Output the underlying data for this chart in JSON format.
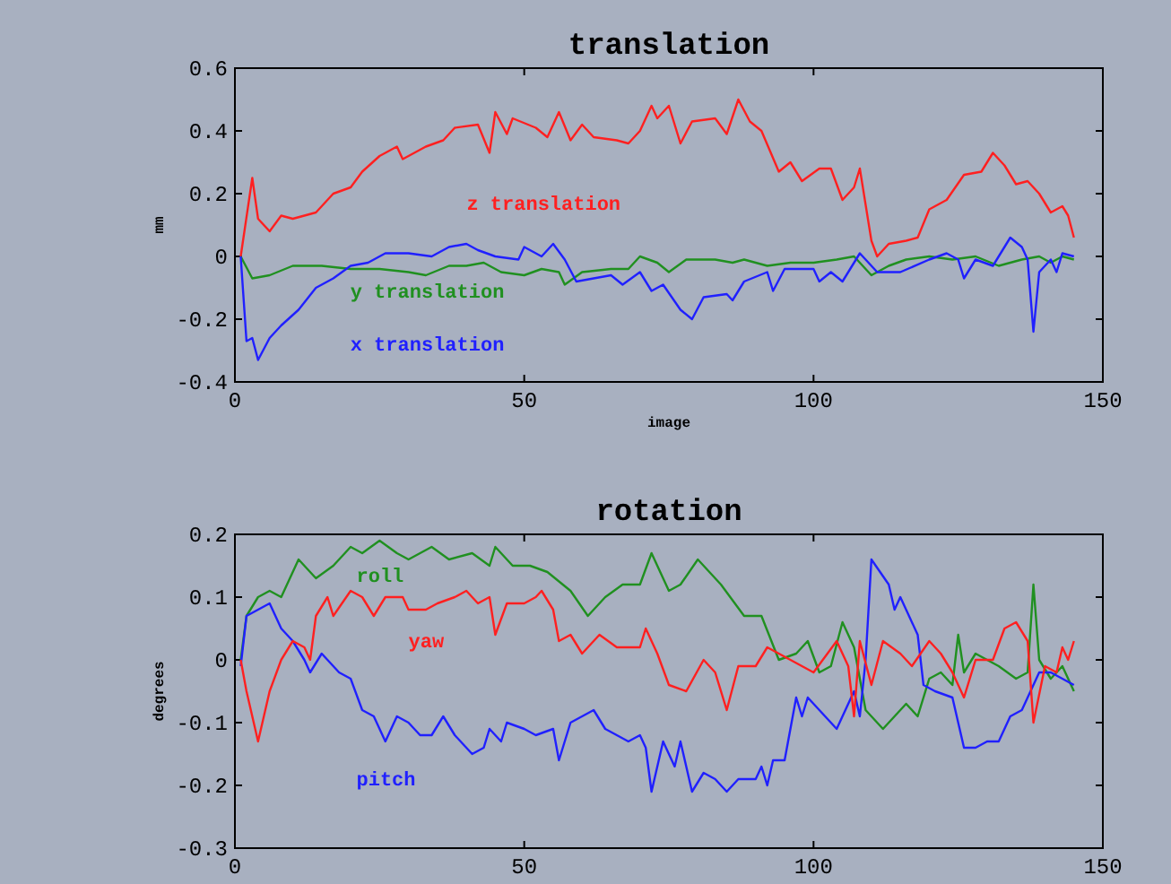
{
  "chart_data": [
    {
      "type": "line",
      "title": "translation",
      "xlabel": "image",
      "ylabel": "mm",
      "xlim": [
        0,
        150
      ],
      "xticks": [
        0,
        50,
        100,
        150
      ],
      "ylim": [
        -0.4,
        0.6
      ],
      "yticks": [
        {
          "value": -0.4,
          "label": "-0.4"
        },
        {
          "value": -0.2,
          "label": "-0.2"
        },
        {
          "value": 0,
          "label": "0"
        },
        {
          "value": 0.2,
          "label": "0.2"
        },
        {
          "value": 0.4,
          "label": "0.4"
        },
        {
          "value": 0.6,
          "label": "0.6"
        }
      ],
      "grid": false,
      "series": [
        {
          "name": "z translation",
          "color": "#ff2020",
          "x": [
            1,
            3,
            4,
            6,
            8,
            10,
            14,
            17,
            20,
            22,
            25,
            28,
            29,
            33,
            36,
            38,
            42,
            44,
            45,
            47,
            48,
            52,
            54,
            56,
            58,
            60,
            62,
            66,
            68,
            70,
            72,
            73,
            75,
            77,
            79,
            83,
            85,
            87,
            89,
            91,
            94,
            96,
            98,
            101,
            103,
            105,
            107,
            108,
            110,
            111,
            113,
            116,
            118,
            120,
            123,
            126,
            129,
            131,
            133,
            135,
            137,
            139,
            141,
            143,
            144,
            145
          ],
          "values": [
            0,
            0.25,
            0.12,
            0.08,
            0.13,
            0.12,
            0.14,
            0.2,
            0.22,
            0.27,
            0.32,
            0.35,
            0.31,
            0.35,
            0.37,
            0.41,
            0.42,
            0.33,
            0.46,
            0.39,
            0.44,
            0.41,
            0.38,
            0.46,
            0.37,
            0.42,
            0.38,
            0.37,
            0.36,
            0.4,
            0.48,
            0.44,
            0.48,
            0.36,
            0.43,
            0.44,
            0.39,
            0.5,
            0.43,
            0.4,
            0.27,
            0.3,
            0.24,
            0.28,
            0.28,
            0.18,
            0.22,
            0.28,
            0.05,
            0,
            0.04,
            0.05,
            0.06,
            0.15,
            0.18,
            0.26,
            0.27,
            0.33,
            0.29,
            0.23,
            0.24,
            0.2,
            0.14,
            0.16,
            0.13,
            0.06
          ]
        },
        {
          "name": "y translation",
          "color": "#209020",
          "x": [
            1,
            3,
            6,
            10,
            15,
            20,
            25,
            30,
            33,
            37,
            40,
            43,
            46,
            50,
            53,
            56,
            57,
            60,
            65,
            68,
            70,
            73,
            75,
            78,
            83,
            86,
            88,
            92,
            96,
            100,
            104,
            107,
            110,
            113,
            116,
            120,
            124,
            128,
            132,
            136,
            139,
            141,
            143,
            145
          ],
          "values": [
            0,
            -0.07,
            -0.06,
            -0.03,
            -0.03,
            -0.04,
            -0.04,
            -0.05,
            -0.06,
            -0.03,
            -0.03,
            -0.02,
            -0.05,
            -0.06,
            -0.04,
            -0.05,
            -0.09,
            -0.05,
            -0.04,
            -0.04,
            0,
            -0.02,
            -0.05,
            -0.01,
            -0.01,
            -0.02,
            -0.01,
            -0.03,
            -0.02,
            -0.02,
            -0.01,
            0,
            -0.06,
            -0.03,
            -0.01,
            0,
            -0.01,
            0,
            -0.03,
            -0.01,
            0,
            -0.02,
            0,
            -0.01
          ]
        },
        {
          "name": "x translation",
          "color": "#2020ff",
          "x": [
            1,
            2,
            3,
            4,
            6,
            8,
            11,
            14,
            17,
            20,
            23,
            26,
            30,
            34,
            37,
            40,
            42,
            45,
            49,
            50,
            53,
            55,
            57,
            59,
            62,
            65,
            67,
            70,
            72,
            74,
            77,
            79,
            81,
            85,
            86,
            88,
            92,
            93,
            95,
            100,
            101,
            103,
            105,
            108,
            111,
            115,
            120,
            123,
            125,
            126,
            128,
            131,
            134,
            136,
            137,
            138,
            139,
            141,
            142,
            143,
            145
          ],
          "values": [
            0,
            -0.27,
            -0.26,
            -0.33,
            -0.26,
            -0.22,
            -0.17,
            -0.1,
            -0.07,
            -0.03,
            -0.02,
            0.01,
            0.01,
            0,
            0.03,
            0.04,
            0.02,
            0,
            -0.01,
            0.03,
            0,
            0.04,
            -0.01,
            -0.08,
            -0.07,
            -0.06,
            -0.09,
            -0.05,
            -0.11,
            -0.09,
            -0.17,
            -0.2,
            -0.13,
            -0.12,
            -0.14,
            -0.08,
            -0.05,
            -0.11,
            -0.04,
            -0.04,
            -0.08,
            -0.05,
            -0.08,
            0.01,
            -0.05,
            -0.05,
            -0.01,
            0.01,
            -0.01,
            -0.07,
            -0.01,
            -0.03,
            0.06,
            0.03,
            -0.01,
            -0.24,
            -0.05,
            -0.01,
            -0.05,
            0.01,
            0
          ]
        }
      ]
    },
    {
      "type": "line",
      "title": "rotation",
      "ylabel": "degrees",
      "xlim": [
        0,
        150
      ],
      "xticks": [
        0,
        50,
        100,
        150
      ],
      "ylim": [
        -0.3,
        0.2
      ],
      "yticks": [
        {
          "value": -0.3,
          "label": "-0.3"
        },
        {
          "value": -0.2,
          "label": "-0.2"
        },
        {
          "value": -0.1,
          "label": "-0.1"
        },
        {
          "value": 0,
          "label": "0"
        },
        {
          "value": 0.1,
          "label": "0.1"
        },
        {
          "value": 0.2,
          "label": "0.2"
        }
      ],
      "grid": false,
      "series": [
        {
          "name": "roll",
          "color": "#209020",
          "x": [
            1,
            2,
            4,
            6,
            8,
            11,
            14,
            17,
            20,
            22,
            25,
            28,
            30,
            34,
            37,
            41,
            44,
            45,
            48,
            51,
            54,
            58,
            61,
            64,
            67,
            70,
            72,
            75,
            77,
            80,
            84,
            88,
            91,
            94,
            97,
            99,
            101,
            103,
            105,
            107,
            109,
            112,
            115,
            116,
            118,
            120,
            122,
            124,
            125,
            126,
            128,
            132,
            135,
            137,
            138,
            139,
            141,
            143,
            145
          ],
          "values": [
            0,
            0.07,
            0.1,
            0.11,
            0.1,
            0.16,
            0.13,
            0.15,
            0.18,
            0.17,
            0.19,
            0.17,
            0.16,
            0.18,
            0.16,
            0.17,
            0.15,
            0.18,
            0.15,
            0.15,
            0.14,
            0.11,
            0.07,
            0.1,
            0.12,
            0.12,
            0.17,
            0.11,
            0.12,
            0.16,
            0.12,
            0.07,
            0.07,
            0,
            0.01,
            0.03,
            -0.02,
            -0.01,
            0.06,
            0.02,
            -0.08,
            -0.11,
            -0.08,
            -0.07,
            -0.09,
            -0.03,
            -0.02,
            -0.04,
            0.04,
            -0.02,
            0.01,
            -0.01,
            -0.03,
            -0.02,
            0.12,
            0,
            -0.03,
            -0.01,
            -0.05
          ]
        },
        {
          "name": "pitch",
          "color": "#2020ff",
          "x": [
            1,
            2,
            4,
            6,
            8,
            10,
            12,
            13,
            15,
            18,
            20,
            22,
            24,
            26,
            28,
            30,
            32,
            34,
            36,
            38,
            41,
            43,
            44,
            46,
            47,
            50,
            52,
            55,
            56,
            58,
            60,
            62,
            64,
            66,
            68,
            70,
            71,
            72,
            74,
            76,
            77,
            79,
            81,
            83,
            85,
            87,
            90,
            91,
            92,
            93,
            95,
            97,
            98,
            99,
            102,
            104,
            106,
            107,
            108,
            109,
            110,
            113,
            114,
            115,
            118,
            119,
            121,
            124,
            126,
            128,
            130,
            132,
            134,
            136,
            137,
            139,
            141,
            143,
            145
          ],
          "values": [
            -0.01,
            0.07,
            0.08,
            0.09,
            0.05,
            0.03,
            0,
            -0.02,
            0.01,
            -0.02,
            -0.03,
            -0.08,
            -0.09,
            -0.13,
            -0.09,
            -0.1,
            -0.12,
            -0.12,
            -0.09,
            -0.12,
            -0.15,
            -0.14,
            -0.11,
            -0.13,
            -0.1,
            -0.11,
            -0.12,
            -0.11,
            -0.16,
            -0.1,
            -0.09,
            -0.08,
            -0.11,
            -0.12,
            -0.13,
            -0.12,
            -0.14,
            -0.21,
            -0.13,
            -0.17,
            -0.13,
            -0.21,
            -0.18,
            -0.19,
            -0.21,
            -0.19,
            -0.19,
            -0.17,
            -0.2,
            -0.16,
            -0.16,
            -0.06,
            -0.09,
            -0.06,
            -0.09,
            -0.11,
            -0.07,
            -0.05,
            -0.09,
            0,
            0.16,
            0.12,
            0.08,
            0.1,
            0.04,
            -0.04,
            -0.05,
            -0.06,
            -0.14,
            -0.14,
            -0.13,
            -0.13,
            -0.09,
            -0.08,
            -0.06,
            -0.02,
            -0.02,
            -0.03,
            -0.04
          ]
        },
        {
          "name": "yaw",
          "color": "#ff2020",
          "x": [
            1,
            2,
            4,
            6,
            8,
            10,
            12,
            13,
            14,
            16,
            17,
            20,
            22,
            24,
            26,
            29,
            30,
            33,
            35,
            38,
            40,
            42,
            44,
            45,
            47,
            50,
            52,
            53,
            55,
            56,
            58,
            60,
            63,
            66,
            70,
            71,
            73,
            75,
            78,
            81,
            83,
            85,
            87,
            90,
            92,
            96,
            100,
            104,
            106,
            107,
            108,
            110,
            112,
            115,
            117,
            120,
            122,
            124,
            126,
            128,
            131,
            133,
            135,
            137,
            138,
            140,
            142,
            143,
            144,
            145
          ],
          "values": [
            0,
            -0.05,
            -0.13,
            -0.05,
            0,
            0.03,
            0.02,
            0,
            0.07,
            0.1,
            0.07,
            0.11,
            0.1,
            0.07,
            0.1,
            0.1,
            0.08,
            0.08,
            0.09,
            0.1,
            0.11,
            0.09,
            0.1,
            0.04,
            0.09,
            0.09,
            0.1,
            0.11,
            0.08,
            0.03,
            0.04,
            0.01,
            0.04,
            0.02,
            0.02,
            0.05,
            0.01,
            -0.04,
            -0.05,
            0,
            -0.02,
            -0.08,
            -0.01,
            -0.01,
            0.02,
            0,
            -0.02,
            0.03,
            -0.01,
            -0.09,
            0.03,
            -0.04,
            0.03,
            0.01,
            -0.01,
            0.03,
            0.01,
            -0.02,
            -0.06,
            0,
            0,
            0.05,
            0.06,
            0.03,
            -0.1,
            -0.01,
            -0.02,
            0.02,
            0,
            0.03
          ]
        }
      ]
    }
  ]
}
